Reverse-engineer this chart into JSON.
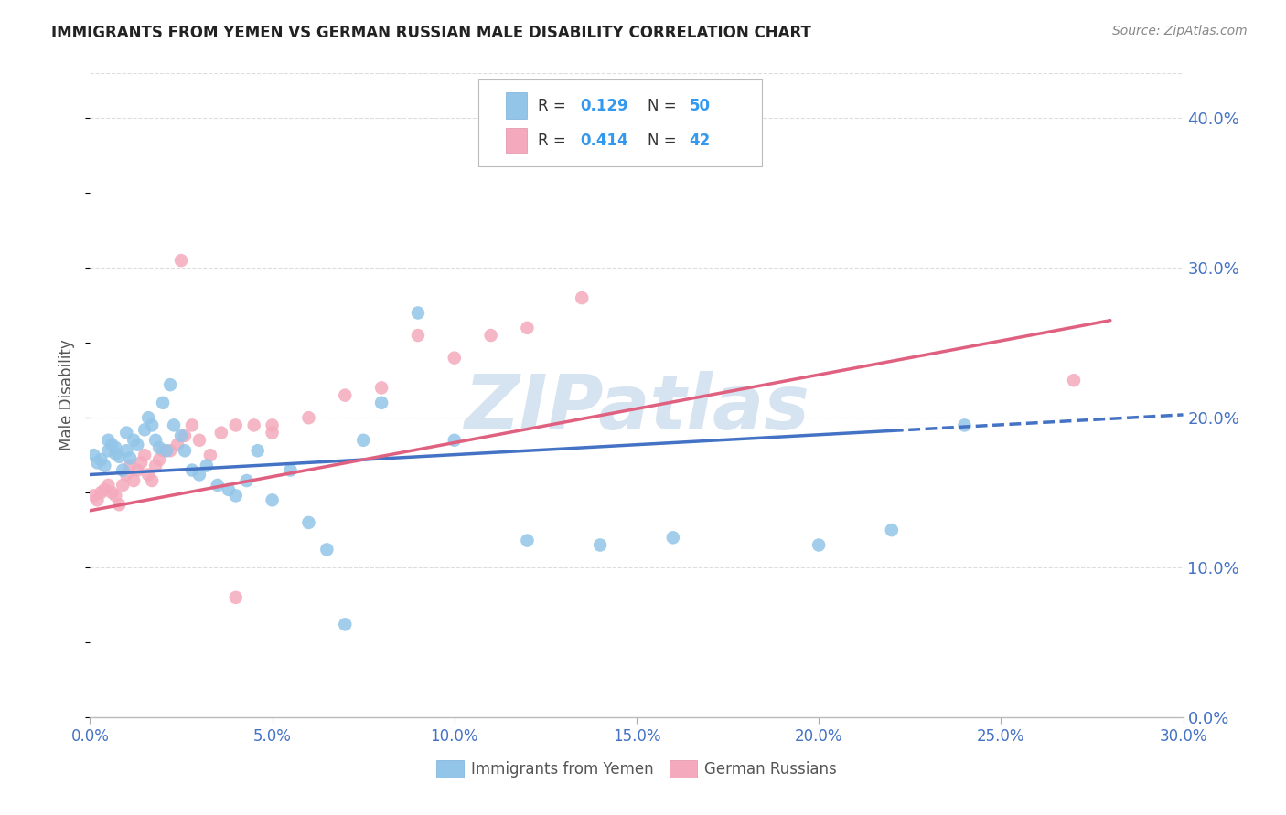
{
  "title": "IMMIGRANTS FROM YEMEN VS GERMAN RUSSIAN MALE DISABILITY CORRELATION CHART",
  "source": "Source: ZipAtlas.com",
  "ylabel": "Male Disability",
  "xlim": [
    0.0,
    0.3
  ],
  "ylim": [
    0.0,
    0.43
  ],
  "legend_label1": "Immigrants from Yemen",
  "legend_label2": "German Russians",
  "R1": 0.129,
  "N1": 50,
  "R2": 0.414,
  "N2": 42,
  "color_blue": "#92C5E8",
  "color_pink": "#F4AABC",
  "color_blue_line": "#4472C4",
  "color_pink_line": "#E06080",
  "watermark": "ZIPatlas",
  "watermark_color": "#C5D8EA",
  "blue_scatter_x": [
    0.001,
    0.002,
    0.003,
    0.004,
    0.005,
    0.005,
    0.006,
    0.007,
    0.007,
    0.008,
    0.009,
    0.01,
    0.01,
    0.011,
    0.012,
    0.013,
    0.015,
    0.016,
    0.017,
    0.018,
    0.019,
    0.02,
    0.021,
    0.022,
    0.023,
    0.025,
    0.026,
    0.028,
    0.03,
    0.032,
    0.035,
    0.038,
    0.04,
    0.043,
    0.046,
    0.05,
    0.055,
    0.06,
    0.065,
    0.07,
    0.075,
    0.08,
    0.09,
    0.1,
    0.12,
    0.14,
    0.16,
    0.2,
    0.22,
    0.24
  ],
  "blue_scatter_y": [
    0.175,
    0.17,
    0.172,
    0.168,
    0.185,
    0.178,
    0.182,
    0.18,
    0.176,
    0.174,
    0.165,
    0.19,
    0.178,
    0.173,
    0.185,
    0.182,
    0.192,
    0.2,
    0.195,
    0.185,
    0.18,
    0.21,
    0.178,
    0.222,
    0.195,
    0.188,
    0.178,
    0.165,
    0.162,
    0.168,
    0.155,
    0.152,
    0.148,
    0.158,
    0.178,
    0.145,
    0.165,
    0.13,
    0.112,
    0.062,
    0.185,
    0.21,
    0.27,
    0.185,
    0.118,
    0.115,
    0.12,
    0.115,
    0.125,
    0.195
  ],
  "pink_scatter_x": [
    0.001,
    0.002,
    0.003,
    0.004,
    0.005,
    0.006,
    0.007,
    0.008,
    0.009,
    0.01,
    0.011,
    0.012,
    0.013,
    0.014,
    0.015,
    0.016,
    0.017,
    0.018,
    0.019,
    0.02,
    0.022,
    0.024,
    0.026,
    0.028,
    0.03,
    0.033,
    0.036,
    0.04,
    0.045,
    0.05,
    0.06,
    0.07,
    0.08,
    0.09,
    0.1,
    0.11,
    0.12,
    0.135,
    0.05,
    0.025,
    0.27,
    0.04
  ],
  "pink_scatter_y": [
    0.148,
    0.145,
    0.15,
    0.152,
    0.155,
    0.15,
    0.148,
    0.142,
    0.155,
    0.162,
    0.168,
    0.158,
    0.165,
    0.17,
    0.175,
    0.162,
    0.158,
    0.168,
    0.172,
    0.178,
    0.178,
    0.182,
    0.188,
    0.195,
    0.185,
    0.175,
    0.19,
    0.195,
    0.195,
    0.195,
    0.2,
    0.215,
    0.22,
    0.255,
    0.24,
    0.255,
    0.26,
    0.28,
    0.19,
    0.305,
    0.225,
    0.08
  ],
  "blue_line_x0": 0.0,
  "blue_line_x_solid_end": 0.22,
  "blue_line_x_end": 0.3,
  "blue_line_y0": 0.162,
  "blue_line_y_end": 0.202,
  "pink_line_x0": 0.0,
  "pink_line_x_end": 0.28,
  "pink_line_y0": 0.138,
  "pink_line_y_end": 0.265
}
